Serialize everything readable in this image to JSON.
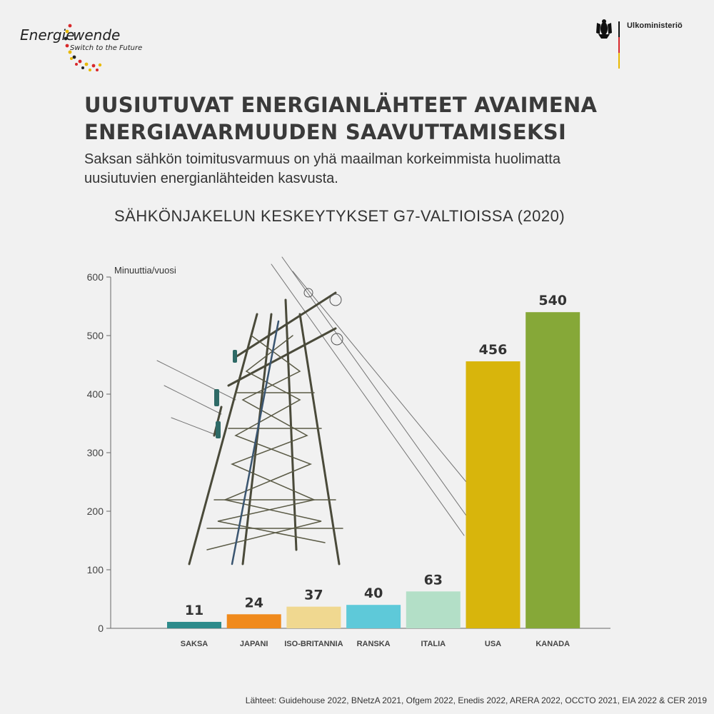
{
  "logo": {
    "word1": "Energie",
    "word2": "wende",
    "tagline": "Switch to the Future"
  },
  "ministry": {
    "name": "Ulkoministeriö"
  },
  "headline": "UUSIUTUVAT ENERGIANLÄHTEET AVAIMENA ENERGIAVARMUUDEN SAAVUTTAMISEKSI",
  "subtitle": "Saksan sähkön toimitusvarmuus on yhä maailman korkeimmista huolimatta uusiutuvien energianlähteiden kasvusta.",
  "source": "Lähteet: Guidehouse 2022, BNetzA 2021, Ofgem 2022, Enedis 2022, ARERA 2022, OCCTO 2021, EIA 2022 & CER 2019",
  "chart_data": {
    "type": "bar",
    "title": "SÄHKÖNJAKELUN KESKEYTYKSET G7-VALTIOISSA (2020)",
    "ylabel": "Minuuttia/vuosi",
    "ylim": [
      0,
      600
    ],
    "yticks": [
      0,
      100,
      200,
      300,
      400,
      500,
      600
    ],
    "categories": [
      "SAKSA",
      "JAPANI",
      "ISO-BRITANNIA",
      "RANSKA",
      "ITALIA",
      "USA",
      "KANADA"
    ],
    "values": [
      11,
      24,
      37,
      40,
      63,
      456,
      540
    ],
    "colors": [
      "#2e8b8b",
      "#f08a1c",
      "#f0d890",
      "#5ec9d9",
      "#b3dfc7",
      "#d8b50c",
      "#86a838"
    ],
    "grid": false,
    "legend": "none"
  }
}
